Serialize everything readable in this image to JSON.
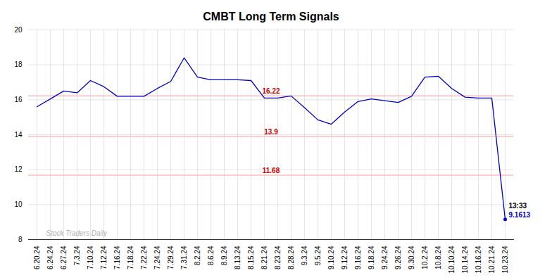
{
  "chart_data": {
    "type": "line",
    "title": "CMBT Long Term Signals",
    "categories": [
      "6.20.24",
      "6.24.24",
      "6.27.24",
      "7.3.24",
      "7.10.24",
      "7.12.24",
      "7.16.24",
      "7.18.24",
      "7.22.24",
      "7.24.24",
      "7.29.24",
      "7.31.24",
      "8.2.24",
      "8.6.24",
      "8.9.24",
      "8.13.24",
      "8.15.24",
      "8.21.24",
      "8.23.24",
      "8.28.24",
      "9.3.24",
      "9.5.24",
      "9.10.24",
      "9.12.24",
      "9.16.24",
      "9.18.24",
      "9.24.24",
      "9.26.24",
      "9.30.24",
      "10.2.24",
      "10.8.24",
      "10.10.24",
      "10.14.24",
      "10.16.24",
      "10.21.24",
      "10.23.24"
    ],
    "values": [
      15.6,
      16.05,
      16.5,
      16.4,
      17.1,
      16.75,
      16.2,
      16.2,
      16.2,
      16.65,
      17.05,
      18.4,
      17.3,
      17.15,
      17.15,
      17.15,
      17.1,
      16.1,
      16.1,
      16.22,
      15.55,
      14.85,
      14.6,
      15.3,
      15.9,
      16.05,
      15.95,
      15.85,
      16.2,
      17.3,
      17.35,
      16.65,
      16.15,
      16.1,
      16.1,
      9.1613
    ],
    "color": "#0000cc",
    "hlines": {
      "values": [
        16.22,
        13.9,
        11.68
      ],
      "color": "#ffbbbb",
      "label_color": "#cc0000"
    },
    "annotations": [
      {
        "text": "13:33",
        "color": "#000000"
      },
      {
        "text": "9.1613",
        "color": "#0000cc"
      }
    ],
    "watermark": {
      "text": "Stock Traders Daily",
      "color": "#b0b0b0"
    },
    "ylim": [
      8,
      20
    ],
    "yticks": [
      8,
      10,
      12,
      14,
      16,
      18,
      20
    ],
    "grid": true
  }
}
